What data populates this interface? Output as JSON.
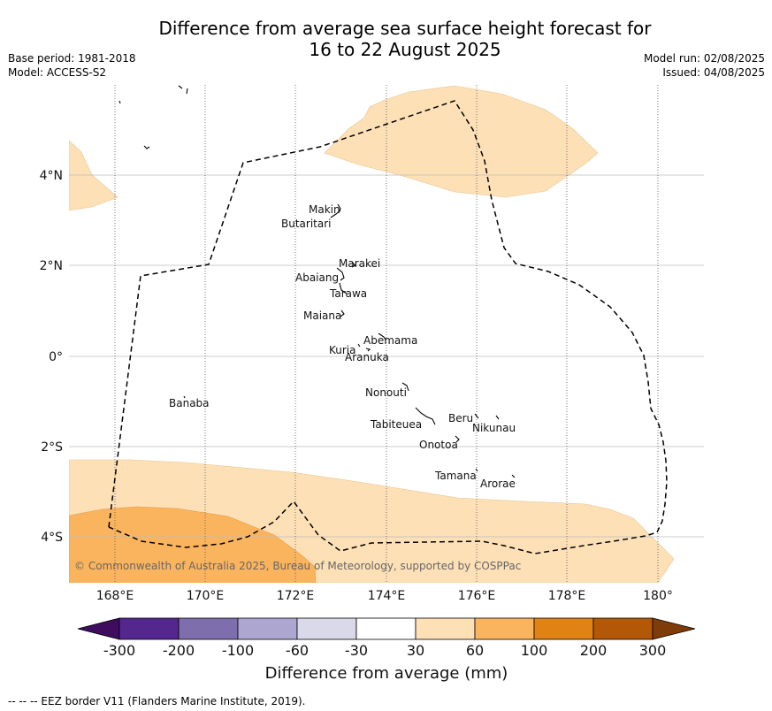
{
  "title_line1": "Difference from average sea surface height forecast for",
  "title_line2": "16 to 22 August 2025",
  "base_period": "Base period: 1981-2018",
  "model": "Model: ACCESS-S2",
  "model_run": "Model run: 02/08/2025",
  "issued": "Issued: 04/08/2025",
  "map": {
    "lat_labels": [
      "4°N",
      "2°N",
      "0°",
      "2°S",
      "4°S"
    ],
    "lon_labels": [
      "168°E",
      "170°E",
      "172°E",
      "174°E",
      "176°E",
      "178°E",
      "180°"
    ],
    "places": {
      "makin": "Makin",
      "butaritari": "Butaritari",
      "marakei": "Marakei",
      "abaiang": "Abaiang",
      "tarawa": "Tarawa",
      "maiana": "Maiana",
      "abemama": "Abemama",
      "kuria": "Kuria",
      "aranuka": "Aranuka",
      "nonouti": "Nonouti",
      "banaba": "Banaba",
      "beru": "Beru",
      "tabiteuea": "Tabiteuea",
      "nikunau": "Nikunau",
      "onotoa": "Onotoa",
      "tamana": "Tamana",
      "arorae": "Arorae"
    },
    "copyright": "© Commonwealth of Australia 2025, Bureau of Meteorology, supported by COSPPac"
  },
  "colorbar": {
    "ticks": [
      "-300",
      "-200",
      "-100",
      "-60",
      "-30",
      "30",
      "60",
      "100",
      "200",
      "300"
    ],
    "colors": [
      "#3f0d5e",
      "#54278f",
      "#7e6eab",
      "#aca6d0",
      "#d9d9ea",
      "#ffffff",
      "#fde0b6",
      "#fbb45e",
      "#e08214",
      "#b35806",
      "#7f3b08"
    ],
    "label": "Difference from average (mm)"
  },
  "footnote": "--  --  -- EEZ border V11 (Flanders Marine Institute, 2019)."
}
